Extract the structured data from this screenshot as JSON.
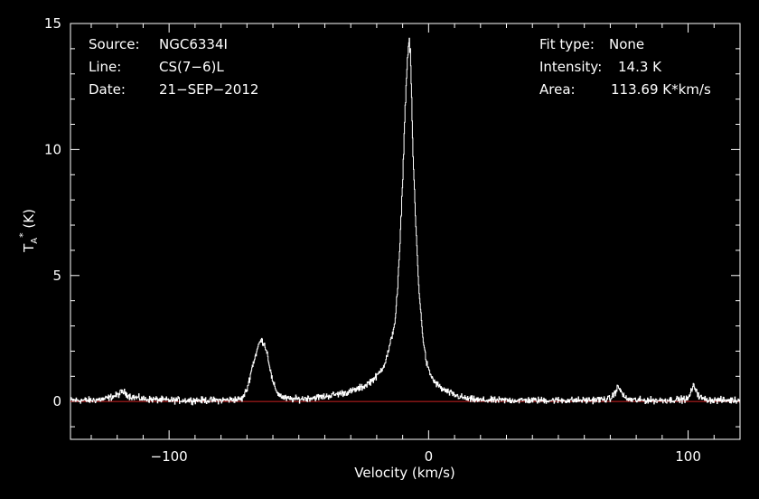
{
  "chart_data": {
    "type": "line",
    "title": "",
    "xlabel": "Velocity (km/s)",
    "ylabel": "T_A* (K)",
    "ylabel_main": "T",
    "ylabel_sub": "A",
    "ylabel_sup": "*",
    "ylabel_unit": " (K)",
    "xlim": [
      -138,
      120
    ],
    "ylim": [
      -1.5,
      15
    ],
    "x_ticks": [
      -100,
      0,
      100
    ],
    "x_tick_labels": [
      "−100",
      "0",
      "100"
    ],
    "y_ticks": [
      0,
      5,
      10,
      15
    ],
    "y_tick_labels": [
      "0",
      "5",
      "10",
      "15"
    ],
    "grid": false,
    "baseline": 0,
    "colors": {
      "background": "#000000",
      "spectrum": "#ffffff",
      "baseline": "#cc2222",
      "axes": "#ffffff"
    },
    "info_left": [
      {
        "label": "Source:",
        "value": "NGC6334I"
      },
      {
        "label": "Line:",
        "value": "CS(7−6)L"
      },
      {
        "label": "Date:",
        "value": "21−SEP−2012"
      }
    ],
    "info_right": [
      {
        "label": "Fit type:",
        "value": "None"
      },
      {
        "label": "Intensity:",
        "value": "14.3 K"
      },
      {
        "label": "Area:",
        "value": "113.69 K*km/s"
      }
    ],
    "series": [
      {
        "values_x": [
          -138,
          -130,
          -125,
          -120,
          -118,
          -115,
          -110,
          -100,
          -90,
          -80,
          -72,
          -70,
          -68,
          -66,
          -65,
          -64,
          -63,
          -62,
          -61,
          -60,
          -58,
          -56,
          -54,
          -50,
          -45,
          -40,
          -35,
          -30,
          -25,
          -20,
          -17,
          -15,
          -13,
          -12,
          -11,
          -10,
          -9,
          -8,
          -7.5,
          -7,
          -6.5,
          -6,
          -5,
          -4,
          -3,
          -2,
          -1,
          0,
          2,
          5,
          10,
          15,
          20,
          30,
          40,
          50,
          60,
          70,
          72,
          73,
          74,
          76,
          80,
          90,
          100,
          101,
          102,
          103,
          104,
          106,
          110,
          115,
          120
        ],
        "values_y": [
          0.05,
          0.05,
          0.1,
          0.25,
          0.4,
          0.2,
          0.1,
          0.05,
          0.05,
          0.05,
          0.1,
          0.5,
          1.4,
          2.1,
          2.4,
          2.4,
          2.2,
          1.8,
          1.2,
          0.7,
          0.3,
          0.15,
          0.1,
          0.1,
          0.15,
          0.2,
          0.3,
          0.4,
          0.6,
          1.0,
          1.5,
          2.2,
          3.2,
          4.5,
          6.5,
          9.0,
          12.0,
          14.0,
          14.3,
          13.5,
          11.5,
          9.5,
          7.0,
          4.8,
          3.4,
          2.3,
          1.6,
          1.2,
          0.8,
          0.5,
          0.25,
          0.1,
          0.05,
          0.05,
          0.05,
          0.05,
          0.05,
          0.1,
          0.4,
          0.6,
          0.4,
          0.1,
          0.05,
          0.05,
          0.1,
          0.4,
          0.6,
          0.5,
          0.2,
          0.1,
          0.05,
          0.05,
          0.05
        ]
      }
    ]
  }
}
